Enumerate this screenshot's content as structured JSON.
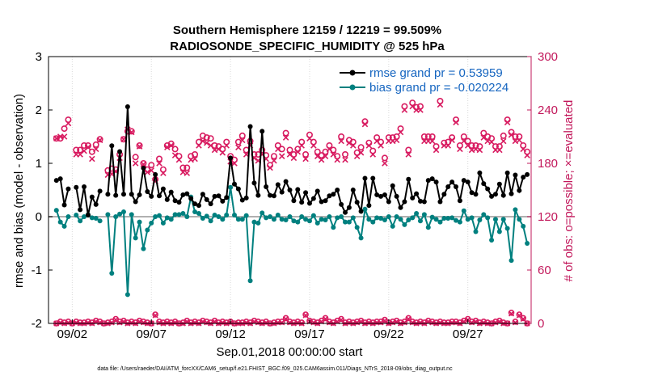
{
  "chart_data": {
    "type": "line",
    "title_line1": "Southern Hemisphere 12159 / 12219 = 99.509%",
    "title_line2": "RADIOSONDE_SPECIFIC_HUMIDITY @ 525 hPa",
    "ylabel_left": "rmse and bias (model - observation)",
    "ylabel_right": "# of obs: o=possible; ×=evaluated",
    "xlabel": "Sep.01,2018 00:00:00 start",
    "footnote": "data file: /Users/raeder/DAI/ATM_forcXX/CAM6_setup/f.e21.FHIST_BGC.f09_025.CAM6assim.011/Diags_NTrS_2018-09/obs_diag_output.nc",
    "ylim_left": [
      -2,
      3
    ],
    "ylim_right": [
      0,
      300
    ],
    "xlim": [
      0.5,
      31.0
    ],
    "left_ticks": [
      "-2",
      "-1",
      "0",
      "1",
      "2",
      "3"
    ],
    "right_ticks": [
      "0",
      "60",
      "120",
      "180",
      "240",
      "300"
    ],
    "x_tick_values": [
      2,
      7,
      12,
      17,
      22,
      27
    ],
    "x_tick_labels": [
      "09/02",
      "09/07",
      "09/12",
      "09/17",
      "09/22",
      "09/27"
    ],
    "x_tick_grid": [
      2,
      7,
      12,
      17,
      22,
      27
    ],
    "colors": {
      "rmse": "#000000",
      "bias": "#00807f",
      "obs": "#d81b60",
      "zero_line": "#b0b0b0",
      "legend_text": "#1565c0",
      "right_axis": "#c2185b"
    },
    "legend": {
      "rmse_label": "rmse grand pr = 0.53959",
      "bias_label": "bias grand pr = -0.020224",
      "placement": "top-right"
    },
    "x": [
      1.0,
      1.25,
      1.5,
      1.75,
      2.0,
      2.25,
      2.5,
      2.75,
      3.0,
      3.25,
      3.5,
      3.75,
      4.0,
      4.25,
      4.5,
      4.75,
      5.0,
      5.25,
      5.5,
      5.75,
      6.0,
      6.25,
      6.5,
      6.75,
      7.0,
      7.25,
      7.5,
      7.75,
      8.0,
      8.25,
      8.5,
      8.75,
      9.0,
      9.25,
      9.5,
      9.75,
      10.0,
      10.25,
      10.5,
      10.75,
      11.0,
      11.25,
      11.5,
      11.75,
      12.0,
      12.25,
      12.5,
      12.75,
      13.0,
      13.25,
      13.5,
      13.75,
      14.0,
      14.25,
      14.5,
      14.75,
      15.0,
      15.25,
      15.5,
      15.75,
      16.0,
      16.25,
      16.5,
      16.75,
      17.0,
      17.25,
      17.5,
      17.75,
      18.0,
      18.25,
      18.5,
      18.75,
      19.0,
      19.25,
      19.5,
      19.75,
      20.0,
      20.25,
      20.5,
      20.75,
      21.0,
      21.25,
      21.5,
      21.75,
      22.0,
      22.25,
      22.5,
      22.75,
      23.0,
      23.25,
      23.5,
      23.75,
      24.0,
      24.25,
      24.5,
      24.75,
      25.0,
      25.25,
      25.5,
      25.75,
      26.0,
      26.25,
      26.5,
      26.75,
      27.0,
      27.25,
      27.5,
      27.75,
      28.0,
      28.25,
      28.5,
      28.75,
      29.0,
      29.25,
      29.5,
      29.75,
      30.0,
      30.25,
      30.5,
      30.75
    ],
    "rmse": [
      0.68,
      0.71,
      0.22,
      0.52,
      null,
      0.55,
      0.13,
      0.56,
      0.03,
      0.37,
      0.23,
      0.48,
      null,
      0.42,
      1.33,
      0.4,
      1.22,
      0.42,
      2.06,
      0.42,
      0.28,
      0.41,
      0.91,
      0.47,
      0.38,
      0.79,
      0.39,
      0.52,
      0.32,
      0.46,
      0.3,
      0.27,
      0.41,
      0.43,
      0.34,
      0.24,
      0.21,
      0.42,
      0.32,
      0.24,
      0.38,
      0.39,
      0.29,
      0.36,
      1.1,
      0.61,
      0.52,
      0.31,
      0.35,
      1.69,
      0.63,
      0.4,
      1.6,
      0.56,
      0.4,
      0.39,
      0.6,
      0.46,
      0.66,
      0.5,
      0.3,
      0.51,
      0.27,
      0.45,
      0.25,
      0.34,
      0.48,
      0.28,
      0.3,
      0.39,
      0.42,
      0.5,
      0.23,
      0.08,
      0.17,
      0.5,
      0.27,
      0.1,
      0.72,
      0.21,
      0.72,
      0.41,
      0.38,
      0.41,
      0.28,
      0.58,
      0.38,
      0.17,
      0.28,
      0.7,
      0.35,
      0.43,
      0.29,
      0.28,
      0.68,
      0.71,
      0.65,
      0.28,
      0.42,
      0.56,
      0.65,
      0.56,
      0.3,
      0.68,
      0.65,
      0.45,
      0.42,
      0.82,
      0.62,
      0.52,
      0.38,
      0.42,
      0.61,
      0.4,
      0.82,
      0.43,
      0.78,
      0.49,
      0.74,
      0.79
    ],
    "bias": [
      0.12,
      -0.1,
      -0.18,
      0.0,
      null,
      0.03,
      -0.08,
      0.0,
      0.04,
      -0.02,
      -0.03,
      -0.08,
      null,
      0.04,
      -1.06,
      0.0,
      0.05,
      0.09,
      -1.46,
      0.04,
      -0.4,
      -0.1,
      -0.6,
      -0.25,
      -0.12,
      0.0,
      0.02,
      -0.12,
      -0.02,
      -0.05,
      0.04,
      0.04,
      0.06,
      0.0,
      0.37,
      0.09,
      0.06,
      -0.03,
      0.01,
      -0.08,
      0.03,
      0.0,
      -0.05,
      0.03,
      0.55,
      0.03,
      -0.05,
      -0.05,
      0.02,
      -1.2,
      -0.1,
      -0.12,
      0.07,
      -0.02,
      0.0,
      -0.05,
      0.03,
      -0.05,
      -0.06,
      0.0,
      -0.08,
      -0.1,
      0.0,
      -0.05,
      -0.08,
      0.02,
      -0.12,
      -0.05,
      -0.06,
      0.0,
      -0.2,
      -0.02,
      0.0,
      -0.1,
      -0.1,
      -0.02,
      -0.2,
      -0.4,
      0.14,
      -0.05,
      -0.1,
      -0.02,
      -0.03,
      -0.06,
      0.0,
      -0.18,
      0.0,
      -0.05,
      -0.15,
      -0.06,
      -0.02,
      0.06,
      -0.08,
      0.04,
      -0.2,
      -0.01,
      -0.05,
      -0.1,
      -0.03,
      -0.03,
      -0.02,
      -0.07,
      -0.1,
      0.11,
      -0.05,
      -0.02,
      -0.28,
      -0.06,
      0.04,
      -0.02,
      -0.44,
      -0.05,
      -0.28,
      -0.05,
      -0.22,
      -0.82,
      0.13,
      -0.05,
      -0.18,
      -0.5
    ],
    "obs_possible": [
      208,
      208,
      219,
      229,
      null,
      195,
      195,
      200,
      200,
      193,
      201,
      207,
      null,
      172,
      174,
      173,
      190,
      207,
      216,
      216,
      187,
      200,
      180,
      173,
      178,
      162,
      185,
      173,
      200,
      202,
      196,
      188,
      175,
      175,
      188,
      190,
      204,
      211,
      209,
      208,
      200,
      199,
      196,
      204,
      188,
      184,
      204,
      211,
      195,
      205,
      190,
      190,
      195,
      189,
      178,
      188,
      200,
      196,
      214,
      195,
      190,
      196,
      204,
      190,
      212,
      204,
      193,
      189,
      193,
      200,
      195,
      188,
      210,
      190,
      206,
      204,
      192,
      198,
      227,
      203,
      194,
      209,
      204,
      186,
      209,
      209,
      210,
      219,
      244,
      195,
      248,
      243,
      244,
      210,
      210,
      210,
      199,
      250,
      203,
      204,
      209,
      229,
      200,
      210,
      205,
      200,
      200,
      199,
      214,
      210,
      208,
      199,
      199,
      211,
      229,
      215,
      210,
      210,
      200,
      193
    ],
    "obs_evaluated": [
      208,
      210,
      210,
      225,
      null,
      190,
      190,
      194,
      198,
      185,
      196,
      206,
      null,
      167,
      168,
      171,
      186,
      207,
      218,
      215,
      180,
      199,
      179,
      170,
      172,
      160,
      180,
      169,
      198,
      200,
      189,
      184,
      170,
      169,
      184,
      185,
      200,
      205,
      203,
      200,
      195,
      196,
      192,
      200,
      182,
      180,
      198,
      206,
      190,
      200,
      186,
      183,
      190,
      185,
      175,
      183,
      196,
      188,
      209,
      190,
      186,
      193,
      200,
      185,
      208,
      200,
      188,
      184,
      188,
      196,
      190,
      184,
      205,
      184,
      203,
      200,
      188,
      192,
      224,
      200,
      190,
      205,
      200,
      180,
      205,
      205,
      206,
      215,
      240,
      190,
      244,
      240,
      240,
      205,
      205,
      205,
      195,
      246,
      200,
      200,
      206,
      226,
      196,
      205,
      200,
      195,
      196,
      195,
      209,
      205,
      204,
      195,
      195,
      205,
      226,
      212,
      205,
      206,
      196,
      189
    ],
    "bottom_possible": [
      0,
      2,
      1,
      2,
      0,
      2,
      1,
      1,
      2,
      1,
      3,
      2,
      0,
      1,
      2,
      5,
      2,
      3,
      1,
      2,
      1,
      3,
      2,
      1,
      0,
      10,
      2,
      1,
      2,
      1,
      2,
      0,
      1,
      3,
      1,
      2,
      1,
      3,
      2,
      1,
      3,
      1,
      2,
      1,
      2,
      0,
      1,
      1,
      2,
      1,
      3,
      2,
      1,
      2,
      0,
      1,
      2,
      2,
      6,
      2,
      1,
      2,
      1,
      10,
      3,
      2,
      1,
      3,
      6,
      2,
      1,
      3,
      5,
      1,
      2,
      1,
      2,
      3,
      1,
      2,
      1,
      2,
      2,
      4,
      1,
      2,
      3,
      1,
      2,
      6,
      2,
      1,
      2,
      1,
      3,
      2,
      1,
      2,
      1,
      1,
      2,
      2,
      1,
      3,
      5,
      2,
      3,
      1,
      2,
      1,
      0,
      2,
      3,
      1,
      0,
      12,
      2,
      10,
      6,
      0
    ]
  }
}
